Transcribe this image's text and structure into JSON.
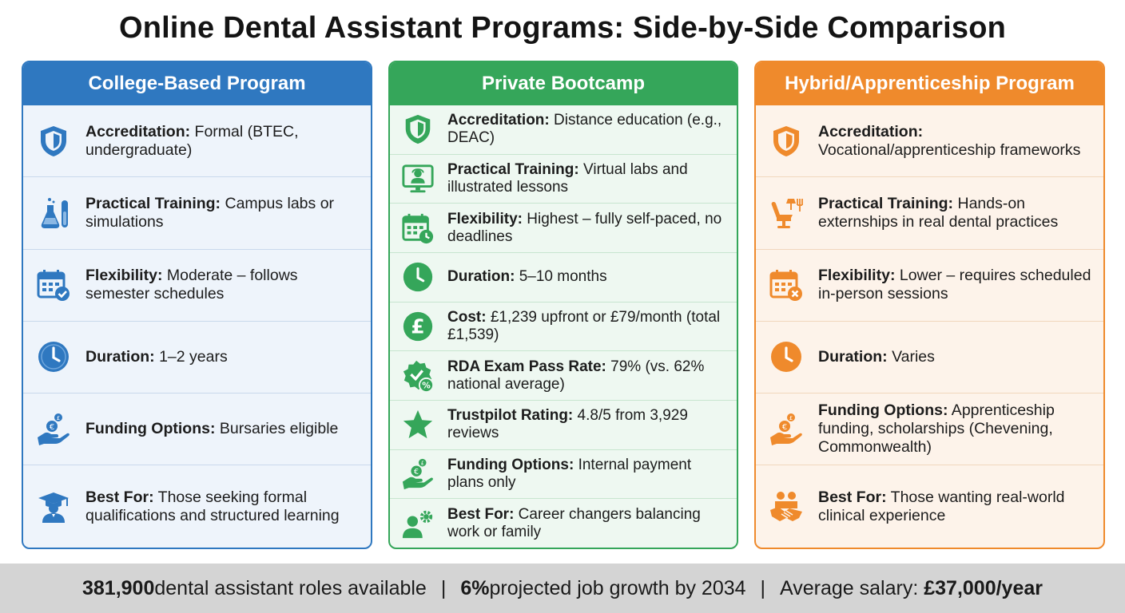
{
  "title": "Online Dental Assistant Programs: Side-by-Side Comparison",
  "colors": {
    "blue": "#2f78c0",
    "green": "#35a65a",
    "orange": "#ef8a2c"
  },
  "college": {
    "header": "College-Based Program",
    "rows": [
      {
        "icon": "shield-icon",
        "label": "Accreditation:",
        "text": " Formal (BTEC, undergraduate)"
      },
      {
        "icon": "lab-flask-icon",
        "label": "Practical Training:",
        "text": " Campus labs or simulations"
      },
      {
        "icon": "calendar-check-icon",
        "label": "Flexibility:",
        "text": " Moderate – follows semester schedules"
      },
      {
        "icon": "clock-icon",
        "label": "Duration:",
        "text": " 1–2 years"
      },
      {
        "icon": "hand-coins-icon",
        "label": "Funding Options:",
        "text": " Bursaries eligible"
      },
      {
        "icon": "graduate-icon",
        "label": "Best For:",
        "text": " Those seeking formal qualifications and structured learning"
      }
    ]
  },
  "bootcamp": {
    "header": "Private Bootcamp",
    "rows": [
      {
        "icon": "shield-icon",
        "label": "Accreditation:",
        "text": " Distance education (e.g., DEAC)"
      },
      {
        "icon": "virtual-lab-monitor-icon",
        "label": "Practical Training:",
        "text": " Virtual labs and illustrated lessons"
      },
      {
        "icon": "calendar-clock-icon",
        "label": "Flexibility:",
        "text": " Highest – fully self-paced, no deadlines"
      },
      {
        "icon": "clock-icon",
        "label": "Duration:",
        "text": " 5–10 months"
      },
      {
        "icon": "pound-coin-icon",
        "label": "Cost:",
        "text": " £1,239 upfront or £79/month (total £1,539)"
      },
      {
        "icon": "badge-percent-icon",
        "label": "RDA Exam Pass Rate:",
        "text": " 79% (vs. 62% national average)"
      },
      {
        "icon": "star-icon",
        "label": "Trustpilot Rating:",
        "text": " 4.8/5 from 3,929 reviews"
      },
      {
        "icon": "hand-coins-icon",
        "label": "Funding Options:",
        "text": " Internal payment plans only"
      },
      {
        "icon": "person-gear-icon",
        "label": "Best For:",
        "text": " Career changers balancing work or family"
      }
    ]
  },
  "hybrid": {
    "header": "Hybrid/Apprenticeship Program",
    "rows": [
      {
        "icon": "shield-icon",
        "label": "Accreditation:",
        "text": " Vocational/apprenticeship frameworks"
      },
      {
        "icon": "dental-chair-icon",
        "label": "Practical Training:",
        "text": " Hands-on externships in real dental practices"
      },
      {
        "icon": "calendar-x-icon",
        "label": "Flexibility:",
        "text": " Lower – requires scheduled in-person sessions"
      },
      {
        "icon": "clock-icon",
        "label": "Duration:",
        "text": " Varies"
      },
      {
        "icon": "hand-coins-icon",
        "label": "Funding Options:",
        "text": " Apprenticeship funding, scholarships (Chevening, Commonwealth)"
      },
      {
        "icon": "handshake-icon",
        "label": "Best For:",
        "text": " Those wanting real-world clinical experience"
      }
    ]
  },
  "footer": {
    "roles_num": "381,900",
    "roles_text": " dental assistant roles available",
    "sep": "|",
    "growth_num": "6%",
    "growth_text": " projected job growth by 2034",
    "salary_text": "Average salary: ",
    "salary_num": "£37,000/year"
  }
}
